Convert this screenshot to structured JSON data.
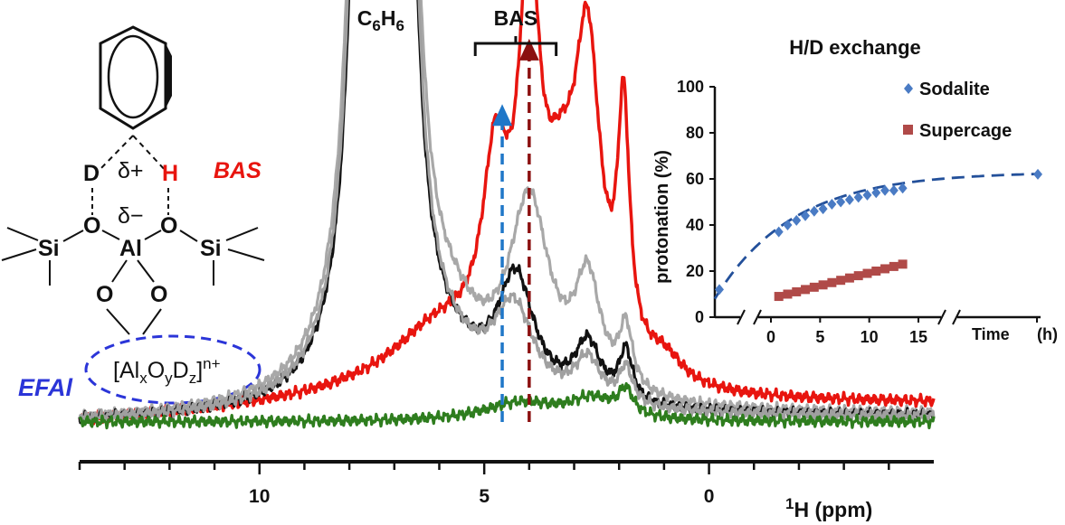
{
  "chart_data": [
    {
      "type": "line",
      "title": "",
      "xlabel_sup": "1",
      "xlabel": "H (ppm)",
      "ylabel": "",
      "x_reversed": true,
      "xlim": [
        14,
        -5
      ],
      "x_ticks": [
        "10",
        "5",
        "0"
      ],
      "x_tick_values": [
        10,
        5,
        0
      ],
      "peak_labels": {
        "benzene": {
          "base": "C",
          "sub1": "6",
          "mid": "H",
          "sub2": "6",
          "x": 7.3
        },
        "bas": {
          "text": "BAS",
          "x_range": [
            5.2,
            3.4
          ]
        }
      },
      "series": [
        {
          "color": "#e8150f",
          "peaks": [
            [
              4.0,
              1.0,
              0.28
            ],
            [
              4.75,
              0.5,
              0.35
            ],
            [
              2.7,
              0.82,
              0.35
            ],
            [
              1.9,
              0.66,
              0.16
            ],
            [
              3.3,
              0.38,
              0.5
            ],
            [
              6.0,
              0.18,
              1.4
            ],
            [
              1.0,
              0.07,
              0.5
            ]
          ],
          "tail": 0.05
        },
        {
          "color": "#a8a8a8",
          "peaks": [
            [
              7.55,
              6.0,
              0.22
            ],
            [
              6.95,
              6.0,
              0.22
            ],
            [
              4.0,
              0.52,
              0.55
            ],
            [
              2.7,
              0.3,
              0.35
            ],
            [
              1.85,
              0.17,
              0.18
            ],
            [
              5.7,
              0.12,
              0.8
            ]
          ],
          "tail": 0.02
        },
        {
          "color": "#111111",
          "peaks": [
            [
              7.55,
              6.0,
              0.2
            ],
            [
              6.95,
              6.0,
              0.2
            ],
            [
              4.3,
              0.33,
              0.5
            ],
            [
              2.7,
              0.16,
              0.35
            ],
            [
              1.85,
              0.14,
              0.18
            ],
            [
              5.7,
              0.06,
              0.8
            ]
          ],
          "tail": 0.015
        },
        {
          "color": "#a0a0a0",
          "peaks": [
            [
              7.55,
              6.0,
              0.21
            ],
            [
              6.95,
              6.0,
              0.21
            ],
            [
              4.35,
              0.25,
              0.55
            ],
            [
              2.7,
              0.12,
              0.35
            ],
            [
              1.85,
              0.1,
              0.18
            ],
            [
              5.7,
              0.05,
              0.8
            ]
          ],
          "tail": 0.012
        },
        {
          "color": "#2e7d1e",
          "peaks": [
            [
              4.2,
              0.05,
              1.0
            ],
            [
              2.6,
              0.055,
              0.6
            ],
            [
              1.85,
              0.07,
              0.2
            ]
          ],
          "tail": 0.0
        }
      ],
      "arrows": [
        {
          "color": "#1f77c8",
          "x": 4.6,
          "from": 0.0,
          "to": 0.86
        },
        {
          "color": "#8b1010",
          "x": 4.0,
          "from": 0.0,
          "to": 1.04
        }
      ]
    },
    {
      "type": "scatter",
      "title": "H/D exchange",
      "xlabel": "Time",
      "xlabel_unit": "(h)",
      "ylabel": "protonation (%)",
      "ylim": [
        0,
        100
      ],
      "y_ticks": [
        0,
        20,
        40,
        60,
        80,
        100
      ],
      "x_ticks": [
        0,
        5,
        10,
        15
      ],
      "broken_axis": true,
      "legend_position": "top-right",
      "series": [
        {
          "name": "Sodalite",
          "color": "#4a7bc4",
          "marker": "diamond",
          "x": [
            0.8,
            1.7,
            2.6,
            3.5,
            4.4,
            5.3,
            6.2,
            7.1,
            8.0,
            8.9,
            9.8,
            10.7,
            11.6,
            12.5,
            13.4
          ],
          "y": [
            37,
            40,
            42,
            44,
            46,
            47,
            49,
            50,
            51,
            52,
            53,
            54,
            55,
            55,
            56
          ],
          "outliers": [
            {
              "pos": "before-break",
              "y": 12
            },
            {
              "pos": "after-break",
              "y": 62
            }
          ],
          "fit": "dashed"
        },
        {
          "name": "Supercage",
          "color": "#b04a48",
          "marker": "square",
          "x": [
            0.8,
            1.7,
            2.6,
            3.5,
            4.4,
            5.3,
            6.2,
            7.1,
            8.0,
            8.9,
            9.8,
            10.7,
            11.6,
            12.5,
            13.4
          ],
          "y": [
            9,
            10,
            11,
            12,
            13,
            14,
            15,
            16,
            17,
            18,
            19,
            20,
            21,
            22,
            23
          ],
          "fit": "solid"
        }
      ]
    }
  ],
  "structure": {
    "atoms": {
      "d": "D",
      "delta_plus": "δ+",
      "h": "H",
      "o_left": "O",
      "delta_minus": "δ−",
      "o_right": "O",
      "si_left": "Si",
      "al": "Al",
      "si_right": "Si",
      "o_bottom_left": "O",
      "o_bottom_right": "O"
    },
    "bas_label": "BAS",
    "efal_label": "EFAl",
    "cluster": {
      "open": "[Al",
      "s1": "x",
      "o": "O",
      "s2": "y",
      "d": "D",
      "s3": "z",
      "close": "]",
      "charge": "n+"
    }
  }
}
